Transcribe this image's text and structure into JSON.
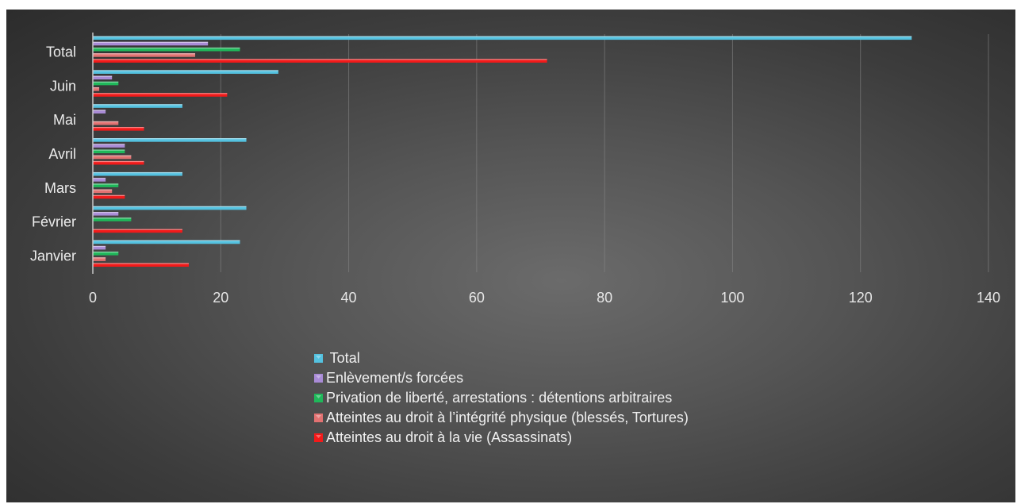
{
  "chart_data": {
    "type": "bar",
    "orientation": "horizontal",
    "categories": [
      "Total",
      "Juin",
      "Mai",
      "Avril",
      "Mars",
      "Février",
      "Janvier"
    ],
    "series": [
      {
        "name": " Total",
        "color": "#54c2e0",
        "values": [
          128,
          29,
          14,
          24,
          14,
          24,
          23
        ]
      },
      {
        "name": "Enlèvement/s forcées",
        "color": "#a98bd6",
        "values": [
          18,
          3,
          2,
          5,
          2,
          4,
          2
        ]
      },
      {
        "name": "Privation de liberté, arrestations : détentions arbitraires",
        "color": "#1fb85a",
        "values": [
          23,
          4,
          0,
          5,
          4,
          6,
          4
        ]
      },
      {
        "name": "Atteintes au droit à l’intégrité physique (blessés, Tortures)",
        "color": "#e27272",
        "values": [
          16,
          1,
          4,
          6,
          3,
          0,
          2
        ]
      },
      {
        "name": "Atteintes au droit à la vie (Assassinats)",
        "color": "#f21a1a",
        "values": [
          71,
          21,
          8,
          8,
          5,
          14,
          15
        ]
      }
    ],
    "xlim": [
      0,
      140
    ],
    "xticks": [
      "0",
      "20",
      "40",
      "60",
      "80",
      "100",
      "120",
      "140"
    ],
    "grid": true,
    "legend_position": "bottom"
  }
}
